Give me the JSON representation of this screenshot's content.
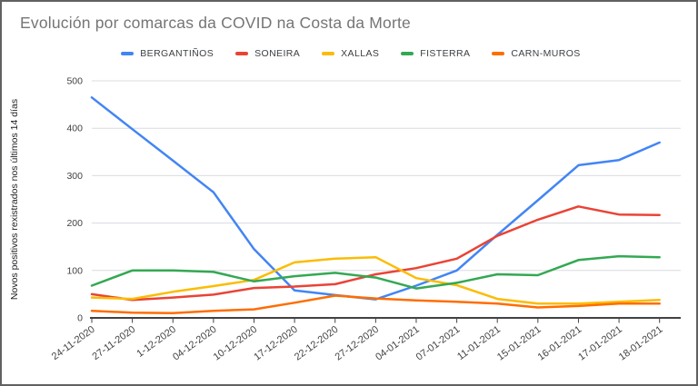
{
  "header": {
    "title": "Evolución por comarcas da COVID na Costa da Morte"
  },
  "chart_data": {
    "type": "line",
    "title": "Evolución por comarcas da COVID na Costa da Morte",
    "xlabel": "",
    "ylabel": "Novos positivos rexistrados nos últimos 14 días",
    "ylim": [
      0,
      500
    ],
    "yticks": [
      0,
      100,
      200,
      300,
      400,
      500
    ],
    "grid": true,
    "legend_position": "top",
    "categories": [
      "24-11-2020",
      "27-11-2020",
      "1-12-2020",
      "04-12-2020",
      "10-12-2020",
      "17-12-2020",
      "22-12-2020",
      "27-12-2020",
      "04-01-2021",
      "07-01-2021",
      "11-01-2021",
      "15-01-2021",
      "16-01-2021",
      "17-01-2021",
      "18-01-2021"
    ],
    "series": [
      {
        "name": "BERGANTIÑOS",
        "color": "#4285F4",
        "values": [
          465,
          398,
          332,
          265,
          145,
          58,
          48,
          39,
          68,
          100,
          175,
          248,
          322,
          333,
          370
        ]
      },
      {
        "name": "SONEIRA",
        "color": "#EA4335",
        "values": [
          50,
          38,
          43,
          49,
          63,
          66,
          71,
          92,
          105,
          125,
          173,
          207,
          235,
          218,
          217
        ]
      },
      {
        "name": "XALLAS",
        "color": "#FBBC04",
        "values": [
          43,
          40,
          55,
          67,
          80,
          117,
          125,
          128,
          84,
          69,
          40,
          30,
          30,
          34,
          38
        ]
      },
      {
        "name": "FISTERRA",
        "color": "#34A853",
        "values": [
          68,
          100,
          100,
          97,
          77,
          88,
          95,
          85,
          62,
          74,
          92,
          90,
          122,
          130,
          128
        ]
      },
      {
        "name": "CARN-MUROS",
        "color": "#FF6D01",
        "values": [
          15,
          11,
          10,
          15,
          18,
          32,
          47,
          41,
          37,
          34,
          30,
          22,
          25,
          30,
          30
        ]
      }
    ],
    "axis_colors": {
      "gridline": "#dadce0",
      "axis_line": "#424242",
      "tick_label": "#424242"
    }
  }
}
